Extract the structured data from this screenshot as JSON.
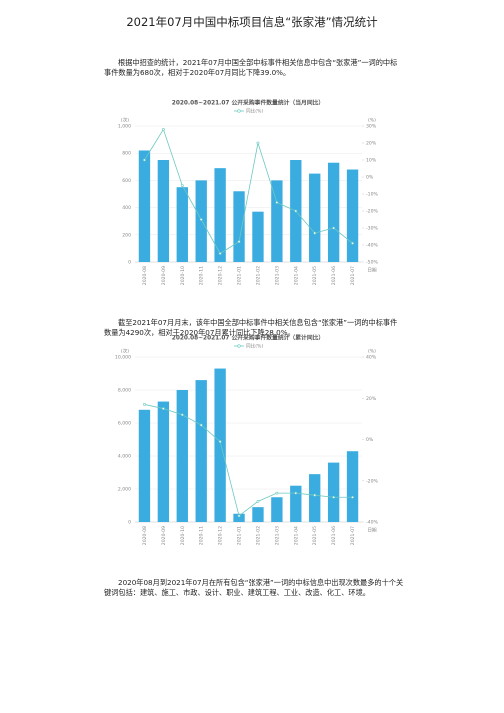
{
  "title": "2021年07月中国中标项目信息“张家港”情况统计",
  "paragraphs": [
    "根据中招查的统计，2021年07月中国全部中标事件相关信息中包含“张家港”一词的中标事件数量为680次，相对于2020年07月同比下降39.0%。",
    "截至2021年07月月末，该年中国全部中标事件中相关信息包含“张家港”一词的中标事件数量为4290次，相对于2020年07月累计同比下降28.0%。",
    "2020年08月到2021年07月在所有包含“张家港”一词的中标信息中出现次数最多的十个关键词包括：建筑、施工、市政、设计、职业、建筑工程、工业、改造、化工、环境。"
  ],
  "chart_data": [
    {
      "type": "bar",
      "title": "2020.08~2021.07 公开采购事件数量统计（当月同比）",
      "legend": "top",
      "ylabel": "(次)",
      "y2label": "(%)",
      "xlabel": "日期",
      "categories": [
        "2020-08",
        "2020-09",
        "2020-10",
        "2020-11",
        "2020-12",
        "2021-01",
        "2021-02",
        "2021-03",
        "2021-04",
        "2021-05",
        "2021-06",
        "2021-07"
      ],
      "series": [
        {
          "type": "bar",
          "color": "#3aace0",
          "values": [
            820,
            750,
            550,
            600,
            690,
            520,
            370,
            600,
            750,
            650,
            730,
            680
          ]
        },
        {
          "type": "line",
          "name": "同比(%)",
          "color": "#6cc8c0",
          "axis": "y2",
          "values": [
            10,
            28,
            -5,
            -25,
            -45,
            -38,
            20,
            -15,
            -20,
            -33,
            -30,
            -39
          ]
        }
      ],
      "ylim": [
        0,
        1000
      ],
      "yticks": [
        0,
        200,
        400,
        600,
        800,
        {
          "value": 1000,
          "label": "1,000"
        }
      ],
      "y2lim": [
        -50,
        30
      ],
      "y2ticks": [
        {
          "value": -50,
          "label": "-50%"
        },
        {
          "value": -40,
          "label": "-40%"
        },
        {
          "value": -30,
          "label": "-30%"
        },
        {
          "value": -20,
          "label": "-20%"
        },
        {
          "value": -10,
          "label": "-10%"
        },
        {
          "value": 0,
          "label": "0%"
        },
        {
          "value": 10,
          "label": "10%"
        },
        {
          "value": 20,
          "label": "20%"
        },
        {
          "value": 30,
          "label": "30%"
        }
      ],
      "grid": true
    },
    {
      "type": "bar",
      "title": "2020.08~2021.07 公开采购事件数量统计（累计同比）",
      "legend": "top",
      "ylabel": "(次)",
      "y2label": "(%)",
      "xlabel": "日期",
      "categories": [
        "2020-08",
        "2020-09",
        "2020-10",
        "2020-11",
        "2020-12",
        "2021-01",
        "2021-02",
        "2021-03",
        "2021-04",
        "2021-05",
        "2021-06",
        "2021-07"
      ],
      "series": [
        {
          "type": "bar",
          "color": "#3aace0",
          "values": [
            6800,
            7300,
            8000,
            8600,
            9300,
            500,
            900,
            1500,
            2200,
            2900,
            3600,
            4290
          ]
        },
        {
          "type": "line",
          "name": "同比(%)",
          "color": "#6cc8c0",
          "axis": "y2",
          "values": [
            17,
            15,
            12,
            7,
            -1,
            -37,
            -30,
            -26,
            -26,
            -27,
            -28,
            -28
          ]
        }
      ],
      "ylim": [
        0,
        10000
      ],
      "yticks": [
        0,
        {
          "value": 2000,
          "label": "2,000"
        },
        {
          "value": 4000,
          "label": "4,000"
        },
        {
          "value": 6000,
          "label": "6,000"
        },
        {
          "value": 8000,
          "label": "8,000"
        },
        {
          "value": 10000,
          "label": "10,000"
        }
      ],
      "y2lim": [
        -40,
        40
      ],
      "y2ticks": [
        {
          "value": -40,
          "label": "-40%"
        },
        {
          "value": -20,
          "label": "-20%"
        },
        {
          "value": 0,
          "label": "0%"
        },
        {
          "value": 20,
          "label": "20%"
        },
        {
          "value": 40,
          "label": "40%"
        }
      ],
      "grid": true
    }
  ]
}
